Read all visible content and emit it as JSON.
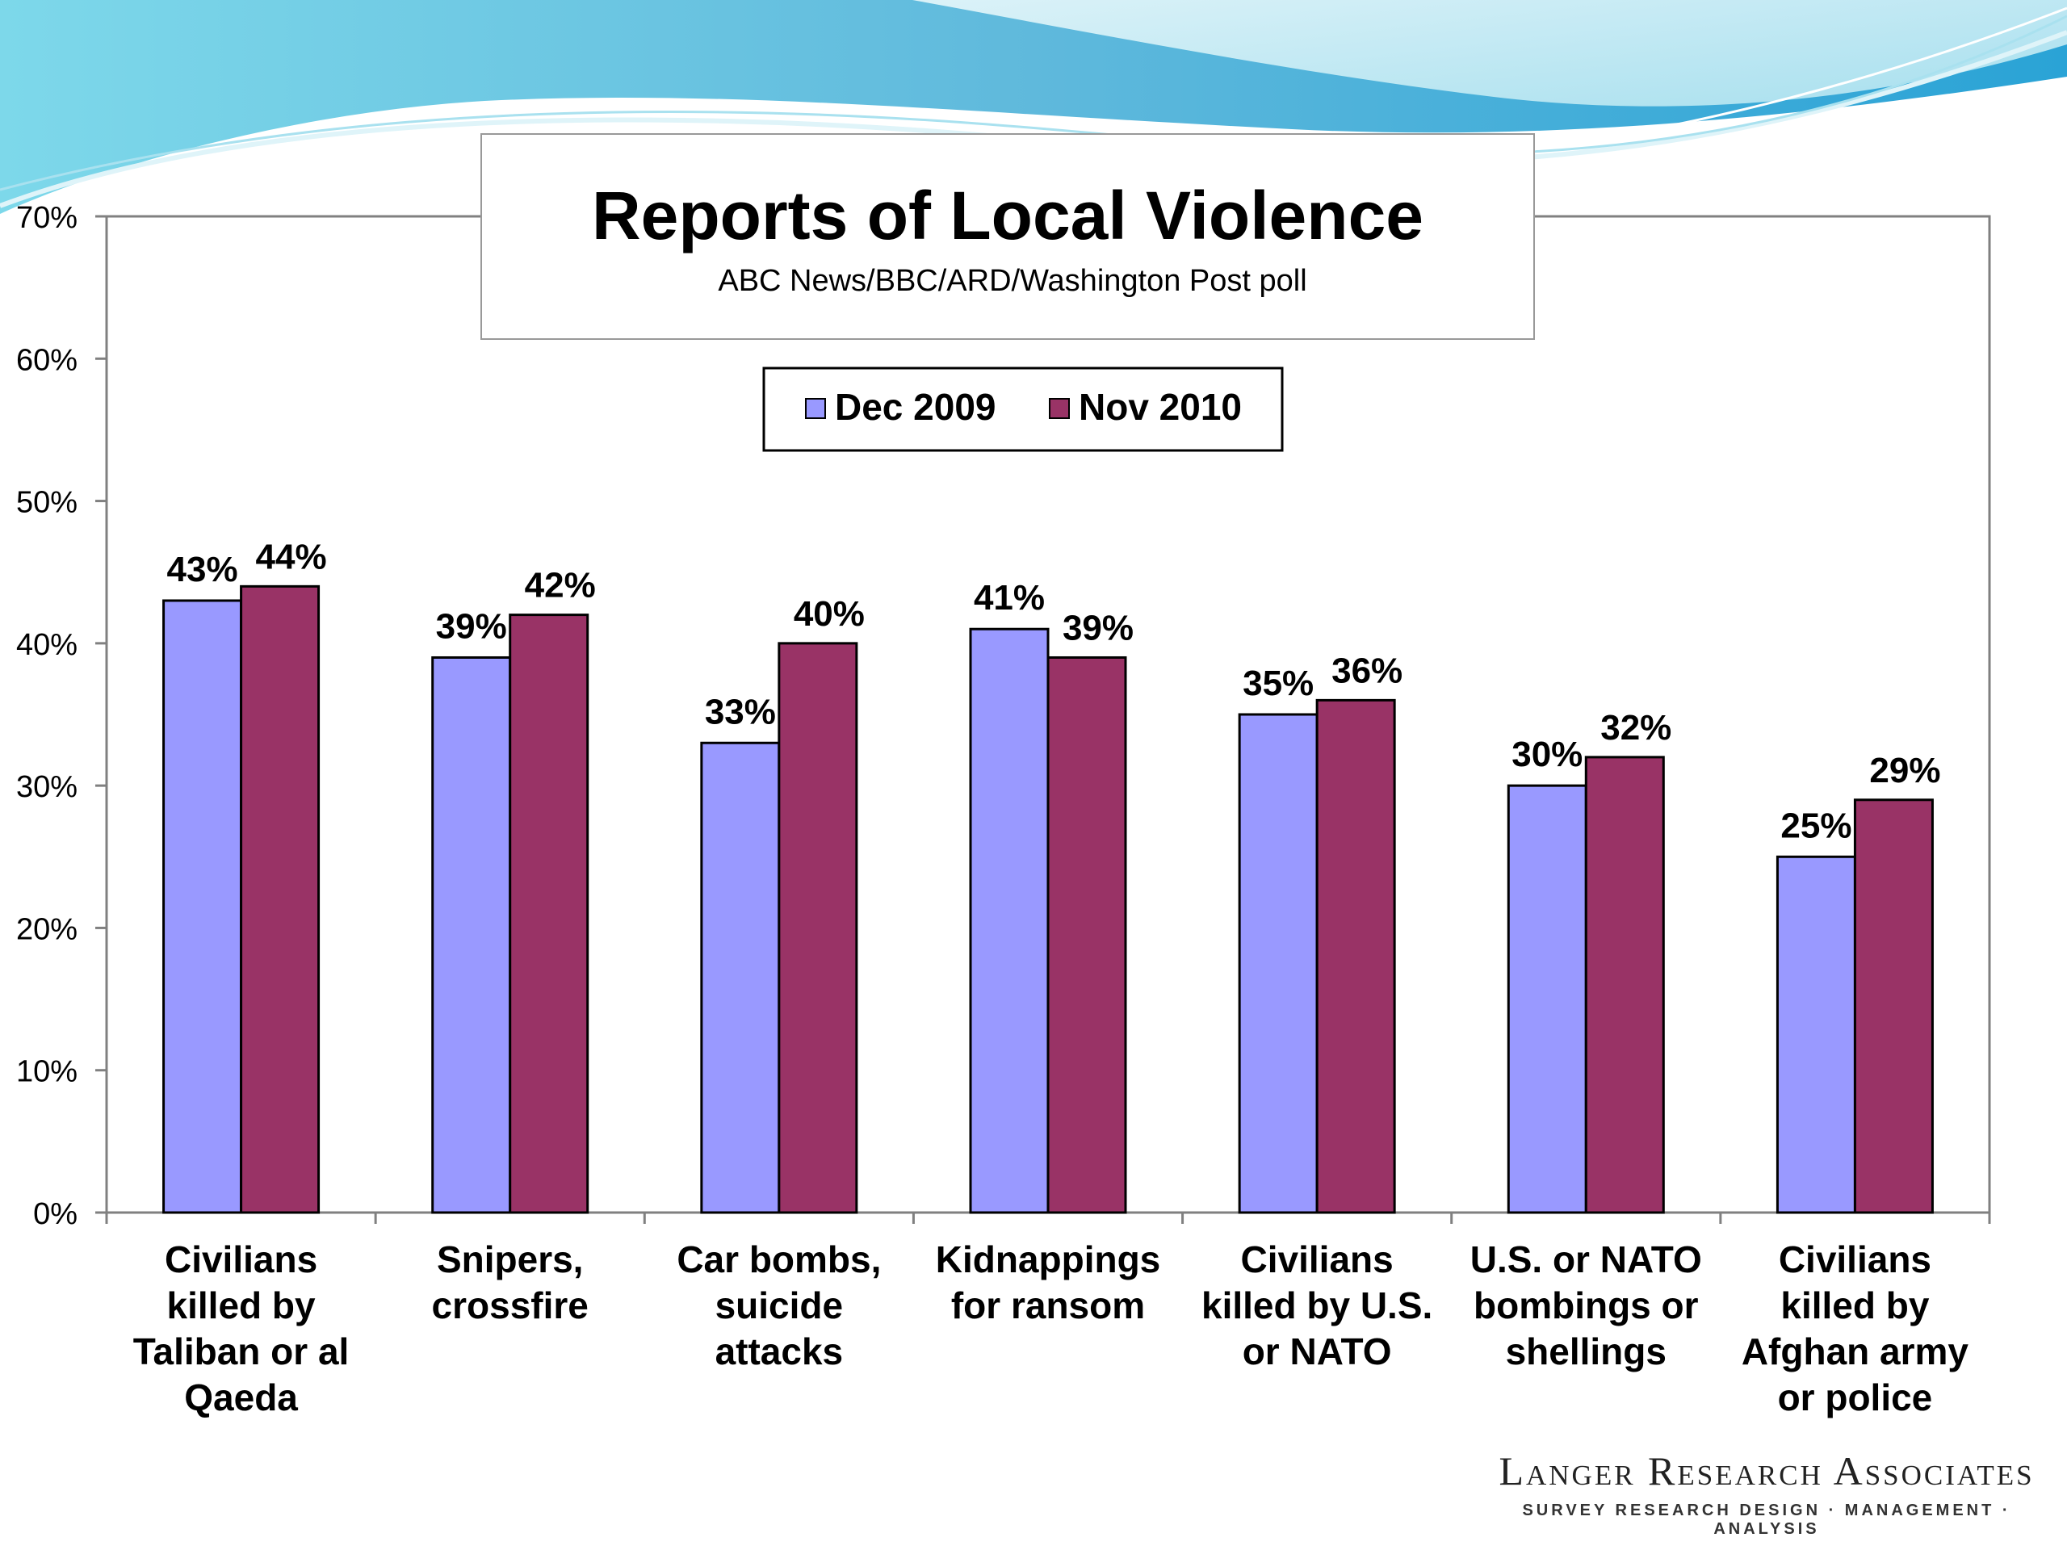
{
  "chart_data": {
    "type": "bar",
    "title": "Reports of Local Violence",
    "subtitle": "ABC News/BBC/ARD/Washington Post poll",
    "categories": [
      [
        "Civilians",
        "killed by",
        "Taliban or al",
        "Qaeda"
      ],
      [
        "Snipers,",
        "crossfire"
      ],
      [
        "Car bombs,",
        "suicide",
        "attacks"
      ],
      [
        "Kidnappings",
        "for ransom"
      ],
      [
        "Civilians",
        "killed by U.S.",
        "or NATO"
      ],
      [
        "U.S. or NATO",
        "bombings or",
        "shellings"
      ],
      [
        "Civilians",
        "killed by",
        "Afghan army",
        "or police"
      ]
    ],
    "series": [
      {
        "name": "Dec 2009",
        "color": "#9999ff",
        "values": [
          43,
          39,
          33,
          41,
          35,
          30,
          25
        ],
        "labels": [
          "43%",
          "39%",
          "33%",
          "41%",
          "35%",
          "30%",
          "25%"
        ]
      },
      {
        "name": "Nov 2010",
        "color": "#993366",
        "values": [
          44,
          42,
          40,
          39,
          36,
          32,
          29
        ],
        "labels": [
          "44%",
          "42%",
          "40%",
          "39%",
          "36%",
          "32%",
          "29%"
        ]
      }
    ],
    "ylim": [
      0,
      70
    ],
    "yticks": [
      "0%",
      "10%",
      "20%",
      "30%",
      "40%",
      "50%",
      "60%",
      "70%"
    ],
    "legend_position": "top-center",
    "grid": false
  },
  "brand": {
    "name": "Langer Research Associates",
    "tagline": "SURVEY RESEARCH DESIGN · MANAGEMENT · ANALYSIS"
  }
}
